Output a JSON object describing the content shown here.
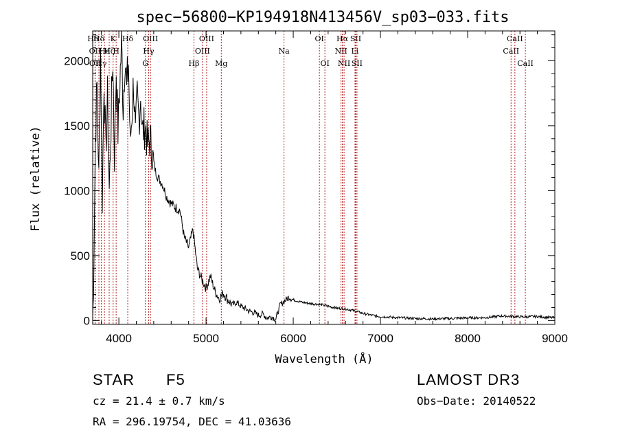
{
  "chart_data": {
    "type": "line",
    "title": "spec−56800−KP194918N413456V_sp03−033.fits",
    "xlabel": "Wavelength (Å)",
    "ylabel": "Flux (relative)",
    "xlim": [
      3700,
      9000
    ],
    "ylim": [
      -30,
      2230
    ],
    "xticks": [
      4000,
      5000,
      6000,
      7000,
      8000,
      9000
    ],
    "yticks": [
      0,
      500,
      1000,
      1500,
      2000
    ],
    "spectrum": {
      "x": [
        3700,
        3710,
        3730,
        3750,
        3770,
        3790,
        3810,
        3830,
        3850,
        3870,
        3890,
        3910,
        3930,
        3950,
        3970,
        3990,
        4010,
        4030,
        4050,
        4070,
        4090,
        4110,
        4130,
        4150,
        4170,
        4190,
        4210,
        4230,
        4250,
        4270,
        4300,
        4330,
        4360,
        4390,
        4420,
        4450,
        4500,
        4550,
        4600,
        4650,
        4700,
        4750,
        4800,
        4850,
        4900,
        4950,
        5000,
        5050,
        5100,
        5150,
        5200,
        5250,
        5300,
        5350,
        5400,
        5450,
        5500,
        5550,
        5600,
        5650,
        5700,
        5750,
        5800,
        5850,
        5900,
        5950,
        6000,
        6100,
        6200,
        6300,
        6400,
        6500,
        6600,
        6700,
        6800,
        6900,
        7000,
        7200,
        7400,
        7600,
        7800,
        8000,
        8200,
        8400,
        8600,
        8800,
        9000
      ],
      "y": [
        40,
        200,
        1400,
        1800,
        1100,
        2100,
        900,
        1900,
        1300,
        1700,
        1000,
        1500,
        2050,
        1250,
        1950,
        1450,
        1800,
        2150,
        1650,
        2100,
        1750,
        2000,
        1350,
        1600,
        1850,
        1400,
        1700,
        1550,
        1750,
        1450,
        1500,
        1350,
        1400,
        1250,
        1150,
        1100,
        1050,
        950,
        900,
        870,
        850,
        640,
        560,
        700,
        400,
        320,
        250,
        340,
        230,
        170,
        210,
        160,
        120,
        140,
        110,
        90,
        70,
        60,
        40,
        50,
        20,
        30,
        10,
        120,
        150,
        180,
        160,
        140,
        130,
        125,
        110,
        95,
        90,
        75,
        55,
        40,
        30,
        22,
        15,
        12,
        15,
        20,
        22,
        35,
        28,
        30,
        20
      ]
    },
    "lines": [
      {
        "name": "Hδ",
        "wave": 3703,
        "row": 0
      },
      {
        "name": "OII",
        "wave": 3727,
        "row": 1
      },
      {
        "name": "OII",
        "wave": 3729,
        "row": 2
      },
      {
        "name": "Hδ",
        "wave": 3771,
        "row": 0
      },
      {
        "name": "Hγ",
        "wave": 3798,
        "row": 2
      },
      {
        "name": "He",
        "wave": 3835,
        "row": 1
      },
      {
        "name": "Hζ",
        "wave": 3889,
        "row": 1
      },
      {
        "name": "K",
        "wave": 3934,
        "row": 0
      },
      {
        "name": "H",
        "wave": 3969,
        "row": 1
      },
      {
        "name": "Hδ",
        "wave": 4102,
        "row": 0
      },
      {
        "name": "G",
        "wave": 4304,
        "row": 2
      },
      {
        "name": "Hγ",
        "wave": 4341,
        "row": 1
      },
      {
        "name": "OIII",
        "wave": 4363,
        "row": 0
      },
      {
        "name": "Hβ",
        "wave": 4861,
        "row": 2
      },
      {
        "name": "OIII",
        "wave": 4959,
        "row": 1
      },
      {
        "name": "OIII",
        "wave": 5007,
        "row": 0
      },
      {
        "name": "Mg",
        "wave": 5175,
        "row": 2
      },
      {
        "name": "Na",
        "wave": 5894,
        "row": 1
      },
      {
        "name": "OI",
        "wave": 6300,
        "row": 0
      },
      {
        "name": "OI",
        "wave": 6363,
        "row": 2
      },
      {
        "name": "NII",
        "wave": 6548,
        "row": 1
      },
      {
        "name": "Hα",
        "wave": 6563,
        "row": 0
      },
      {
        "name": "NII",
        "wave": 6583,
        "row": 2
      },
      {
        "name": "Li",
        "wave": 6708,
        "row": 1
      },
      {
        "name": "SII",
        "wave": 6716,
        "row": 0
      },
      {
        "name": "SII",
        "wave": 6731,
        "row": 2
      },
      {
        "name": "CaII",
        "wave": 8498,
        "row": 1
      },
      {
        "name": "CaII",
        "wave": 8542,
        "row": 0
      },
      {
        "name": "CaII",
        "wave": 8662,
        "row": 2
      }
    ]
  },
  "info": {
    "class": "STAR",
    "subclass": "F5",
    "survey": "LAMOST DR3",
    "cz": "cz = 21.4 ± 0.7 km/s",
    "obsdate": "Obs−Date: 20140522",
    "coords": "RA = 296.19754, DEC =  41.03636"
  },
  "colors": {
    "spectrum": "#000000",
    "line_marker": "#b22222",
    "axis": "#000000"
  }
}
